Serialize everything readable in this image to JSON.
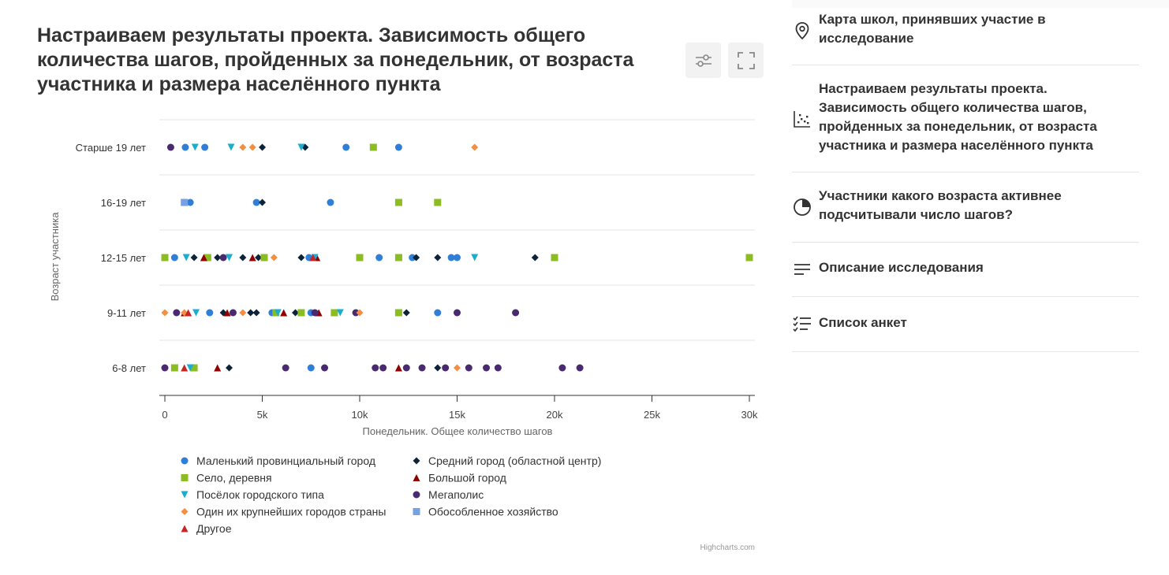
{
  "title": "Настраиваем результаты проекта. Зависимость общего количества шагов, пройденных за понедельник, от возраста участника и размера населённого пункта",
  "toolbar": {
    "settings_icon": "sliders-icon",
    "fullscreen_icon": "fullscreen-icon"
  },
  "sidebar": {
    "items": [
      {
        "label": "Карта школ, принявших участие в исследование",
        "icon": "map-pin-icon"
      },
      {
        "label": "Настраиваем результаты проекта. Зависимость общего количества шагов, пройденных за понедельник, от возраста участника и размера населённого пункта",
        "icon": "scatter-icon"
      },
      {
        "label": "Участники какого возраста активнее подсчитывали число шагов?",
        "icon": "pie-icon"
      },
      {
        "label": "Описание исследования",
        "icon": "text-lines-icon"
      },
      {
        "label": "Список анкет",
        "icon": "checklist-icon"
      }
    ]
  },
  "chart_data": {
    "type": "scatter",
    "xlabel": "Понедельник. Общее количество шагов",
    "ylabel": "Возраст участника",
    "categories": [
      "Старше 19 лет",
      "16-19 лет",
      "12-15 лет",
      "9-11 лет",
      "6-8 лет"
    ],
    "xlim": [
      0,
      30000
    ],
    "xticks": [
      0,
      5000,
      10000,
      15000,
      20000,
      25000,
      30000
    ],
    "xtick_labels": [
      "0",
      "5k",
      "10k",
      "15k",
      "20k",
      "25k",
      "30k"
    ],
    "credits": "Highcharts.com",
    "series": [
      {
        "name": "Маленький провинциальный город",
        "color": "#2f7ed8",
        "marker": "circle",
        "points": [
          [
            "Старше 19 лет",
            1050
          ],
          [
            "Старше 19 лет",
            2050
          ],
          [
            "Старше 19 лет",
            9300
          ],
          [
            "Старше 19 лет",
            12000
          ],
          [
            "16-19 лет",
            1300
          ],
          [
            "16-19 лет",
            4700
          ],
          [
            "16-19 лет",
            8500
          ],
          [
            "12-15 лет",
            500
          ],
          [
            "12-15 лет",
            7400
          ],
          [
            "12-15 лет",
            11000
          ],
          [
            "12-15 лет",
            12700
          ],
          [
            "12-15 лет",
            14700
          ],
          [
            "12-15 лет",
            15000
          ],
          [
            "9-11 лет",
            2300
          ],
          [
            "9-11 лет",
            5500
          ],
          [
            "9-11 лет",
            7500
          ],
          [
            "9-11 лет",
            14000
          ],
          [
            "6-8 лет",
            7500
          ]
        ]
      },
      {
        "name": "Средний город (областной центр)",
        "color": "#0d233a",
        "marker": "diamond",
        "points": [
          [
            "Старше 19 лет",
            5000
          ],
          [
            "Старше 19 лет",
            7200
          ],
          [
            "16-19 лет",
            5000
          ],
          [
            "12-15 лет",
            1500
          ],
          [
            "12-15 лет",
            2700
          ],
          [
            "12-15 лет",
            4000
          ],
          [
            "12-15 лет",
            4800
          ],
          [
            "12-15 лет",
            7000
          ],
          [
            "12-15 лет",
            12900
          ],
          [
            "12-15 лет",
            14000
          ],
          [
            "12-15 лет",
            19000
          ],
          [
            "9-11 лет",
            3000
          ],
          [
            "9-11 лет",
            4400
          ],
          [
            "9-11 лет",
            4700
          ],
          [
            "9-11 лет",
            6700
          ],
          [
            "9-11 лет",
            12400
          ],
          [
            "6-8 лет",
            3300
          ],
          [
            "6-8 лет",
            14000
          ]
        ]
      },
      {
        "name": "Село, деревня",
        "color": "#8bbc21",
        "marker": "square",
        "points": [
          [
            "Старше 19 лет",
            10700
          ],
          [
            "16-19 лет",
            12000
          ],
          [
            "16-19 лет",
            14000
          ],
          [
            "12-15 лет",
            0
          ],
          [
            "12-15 лет",
            2200
          ],
          [
            "12-15 лет",
            5100
          ],
          [
            "12-15 лет",
            10000
          ],
          [
            "12-15 лет",
            12000
          ],
          [
            "12-15 лет",
            20000
          ],
          [
            "12-15 лет",
            30000
          ],
          [
            "9-11 лет",
            5700
          ],
          [
            "9-11 лет",
            7000
          ],
          [
            "9-11 лет",
            8700
          ],
          [
            "9-11 лет",
            12000
          ],
          [
            "6-8 лет",
            500
          ],
          [
            "6-8 лет",
            1500
          ]
        ]
      },
      {
        "name": "Большой город",
        "color": "#910000",
        "marker": "triangle",
        "points": [
          [
            "12-15 лет",
            2000
          ],
          [
            "12-15 лет",
            4500
          ],
          [
            "12-15 лет",
            7800
          ],
          [
            "9-11 лет",
            1000
          ],
          [
            "9-11 лет",
            3200
          ],
          [
            "9-11 лет",
            6100
          ],
          [
            "9-11 лет",
            7900
          ],
          [
            "6-8 лет",
            2700
          ],
          [
            "6-8 лет",
            12000
          ]
        ]
      },
      {
        "name": "Посёлок городского типа",
        "color": "#1aadce",
        "marker": "triangle-down",
        "points": [
          [
            "Старше 19 лет",
            1550
          ],
          [
            "Старше 19 лет",
            3400
          ],
          [
            "Старше 19 лет",
            7000
          ],
          [
            "12-15 лет",
            1100
          ],
          [
            "12-15 лет",
            3300
          ],
          [
            "12-15 лет",
            7700
          ],
          [
            "12-15 лет",
            15900
          ],
          [
            "9-11 лет",
            1600
          ],
          [
            "9-11 лет",
            5800
          ],
          [
            "9-11 лет",
            9000
          ],
          [
            "6-8 лет",
            1300
          ]
        ]
      },
      {
        "name": "Мегаполис",
        "color": "#492970",
        "marker": "circle",
        "points": [
          [
            "Старше 19 лет",
            300
          ],
          [
            "12-15 лет",
            3000
          ],
          [
            "9-11 лет",
            600
          ],
          [
            "9-11 лет",
            3500
          ],
          [
            "9-11 лет",
            7700
          ],
          [
            "9-11 лет",
            9800
          ],
          [
            "9-11 лет",
            15000
          ],
          [
            "9-11 лет",
            18000
          ],
          [
            "6-8 лет",
            0
          ],
          [
            "6-8 лет",
            6200
          ],
          [
            "6-8 лет",
            8200
          ],
          [
            "6-8 лет",
            10800
          ],
          [
            "6-8 лет",
            11200
          ],
          [
            "6-8 лет",
            12400
          ],
          [
            "6-8 лет",
            13200
          ],
          [
            "6-8 лет",
            14400
          ],
          [
            "6-8 лет",
            15600
          ],
          [
            "6-8 лет",
            16500
          ],
          [
            "6-8 лет",
            17100
          ],
          [
            "6-8 лет",
            20400
          ],
          [
            "6-8 лет",
            21300
          ]
        ]
      },
      {
        "name": "Один их крупнейших городов страны",
        "color": "#f28f43",
        "marker": "diamond",
        "points": [
          [
            "Старше 19 лет",
            4000
          ],
          [
            "Старше 19 лет",
            4500
          ],
          [
            "Старше 19 лет",
            15900
          ],
          [
            "12-15 лет",
            5600
          ],
          [
            "9-11 лет",
            0
          ],
          [
            "9-11 лет",
            1000
          ],
          [
            "9-11 лет",
            4000
          ],
          [
            "9-11 лет",
            10000
          ],
          [
            "6-8 лет",
            15000
          ]
        ]
      },
      {
        "name": "Обособленное хозяйство",
        "color": "#77a1e5",
        "marker": "square",
        "points": [
          [
            "16-19 лет",
            1000
          ]
        ]
      },
      {
        "name": "Другое",
        "color": "#c42525",
        "marker": "triangle",
        "points": [
          [
            "12-15 лет",
            7600
          ],
          [
            "9-11 лет",
            1200
          ],
          [
            "6-8 лет",
            1000
          ]
        ]
      }
    ]
  }
}
